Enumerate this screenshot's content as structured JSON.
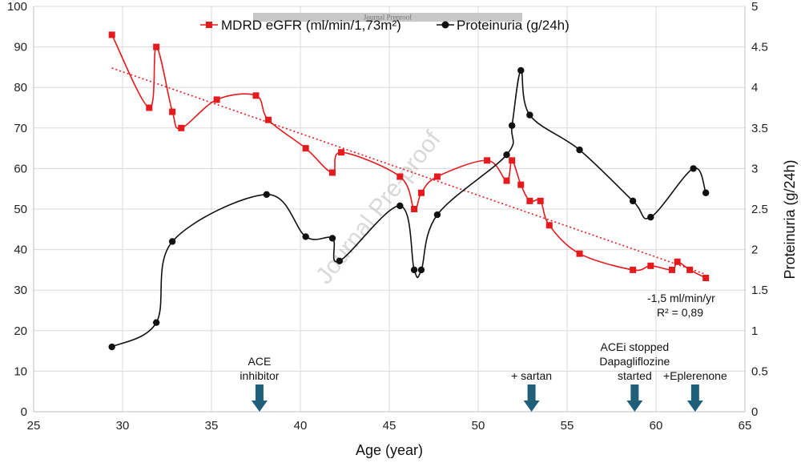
{
  "chart_data": {
    "type": "line",
    "x_label": "Age (year)",
    "y_left_label": "",
    "y_right_label": "Proteinuria (g/24h)",
    "x_range": [
      25,
      65
    ],
    "x_ticks": [
      25,
      30,
      35,
      40,
      45,
      50,
      55,
      60,
      65
    ],
    "y_left_range": [
      0,
      100
    ],
    "y_left_ticks": [
      0,
      10,
      20,
      30,
      40,
      50,
      60,
      70,
      80,
      90,
      100
    ],
    "y_right_range": [
      0,
      5
    ],
    "y_right_ticks": [
      "0",
      "0.5",
      "1",
      "1.5",
      "2",
      "2.5",
      "3",
      "3.5",
      "4",
      "4.5",
      "5"
    ],
    "grid": true,
    "legend_position": "top-center",
    "series": [
      {
        "name": "MDRD eGFR (ml/min/1,73m²)",
        "axis": "left",
        "color": "#e41a1c",
        "marker": "square",
        "x": [
          29.4,
          31.5,
          31.9,
          32.8,
          33.3,
          35.3,
          37.5,
          38.2,
          40.3,
          41.8,
          42.3,
          45.6,
          46.4,
          46.8,
          47.7,
          50.5,
          51.6,
          51.9,
          52.4,
          52.9,
          53.5,
          54.0,
          55.7,
          58.7,
          59.7,
          60.9,
          61.2,
          61.9,
          62.8
        ],
        "y": [
          93,
          75,
          90,
          74,
          70,
          77,
          78,
          72,
          65,
          59,
          64,
          58,
          50,
          54,
          58,
          62,
          57,
          62,
          56,
          52,
          52,
          46,
          39,
          35,
          36,
          35,
          37,
          35,
          33
        ]
      },
      {
        "name": "Proteinuria (g/24h)",
        "axis": "right",
        "color": "#111111",
        "marker": "circle",
        "x": [
          29.4,
          31.9,
          32.8,
          38.1,
          40.3,
          41.8,
          42.2,
          45.6,
          46.4,
          46.8,
          47.7,
          51.6,
          51.9,
          52.4,
          52.9,
          55.7,
          58.7,
          59.7,
          62.1,
          62.8
        ],
        "y": [
          0.8,
          1.1,
          2.1,
          2.68,
          2.16,
          2.14,
          1.86,
          2.54,
          1.75,
          1.75,
          2.43,
          3.17,
          3.53,
          4.21,
          3.66,
          3.23,
          2.6,
          2.4,
          3.0,
          2.7
        ]
      }
    ],
    "trendline": {
      "x": [
        29.4,
        62.8
      ],
      "y": [
        84.8,
        33.9
      ],
      "color": "#e41a1c",
      "style": "dotted"
    },
    "trend_label_1": "-1,5 ml/min/yr",
    "trend_label_2": "R² = 0,89",
    "events": [
      {
        "x": 37.7,
        "lines": [
          "ACE",
          "inhibitor"
        ]
      },
      {
        "x": 53.0,
        "lines": [
          "+ sartan"
        ]
      },
      {
        "x": 58.8,
        "lines": [
          "ACEi stopped",
          "Dapagliflozine",
          "started"
        ]
      },
      {
        "x": 62.2,
        "lines": [
          "+Eplerenone"
        ]
      }
    ],
    "arrow_color": "#1f5f7a",
    "watermark": "Journal Pre-proof",
    "banner_text": "Journal Preproof"
  }
}
